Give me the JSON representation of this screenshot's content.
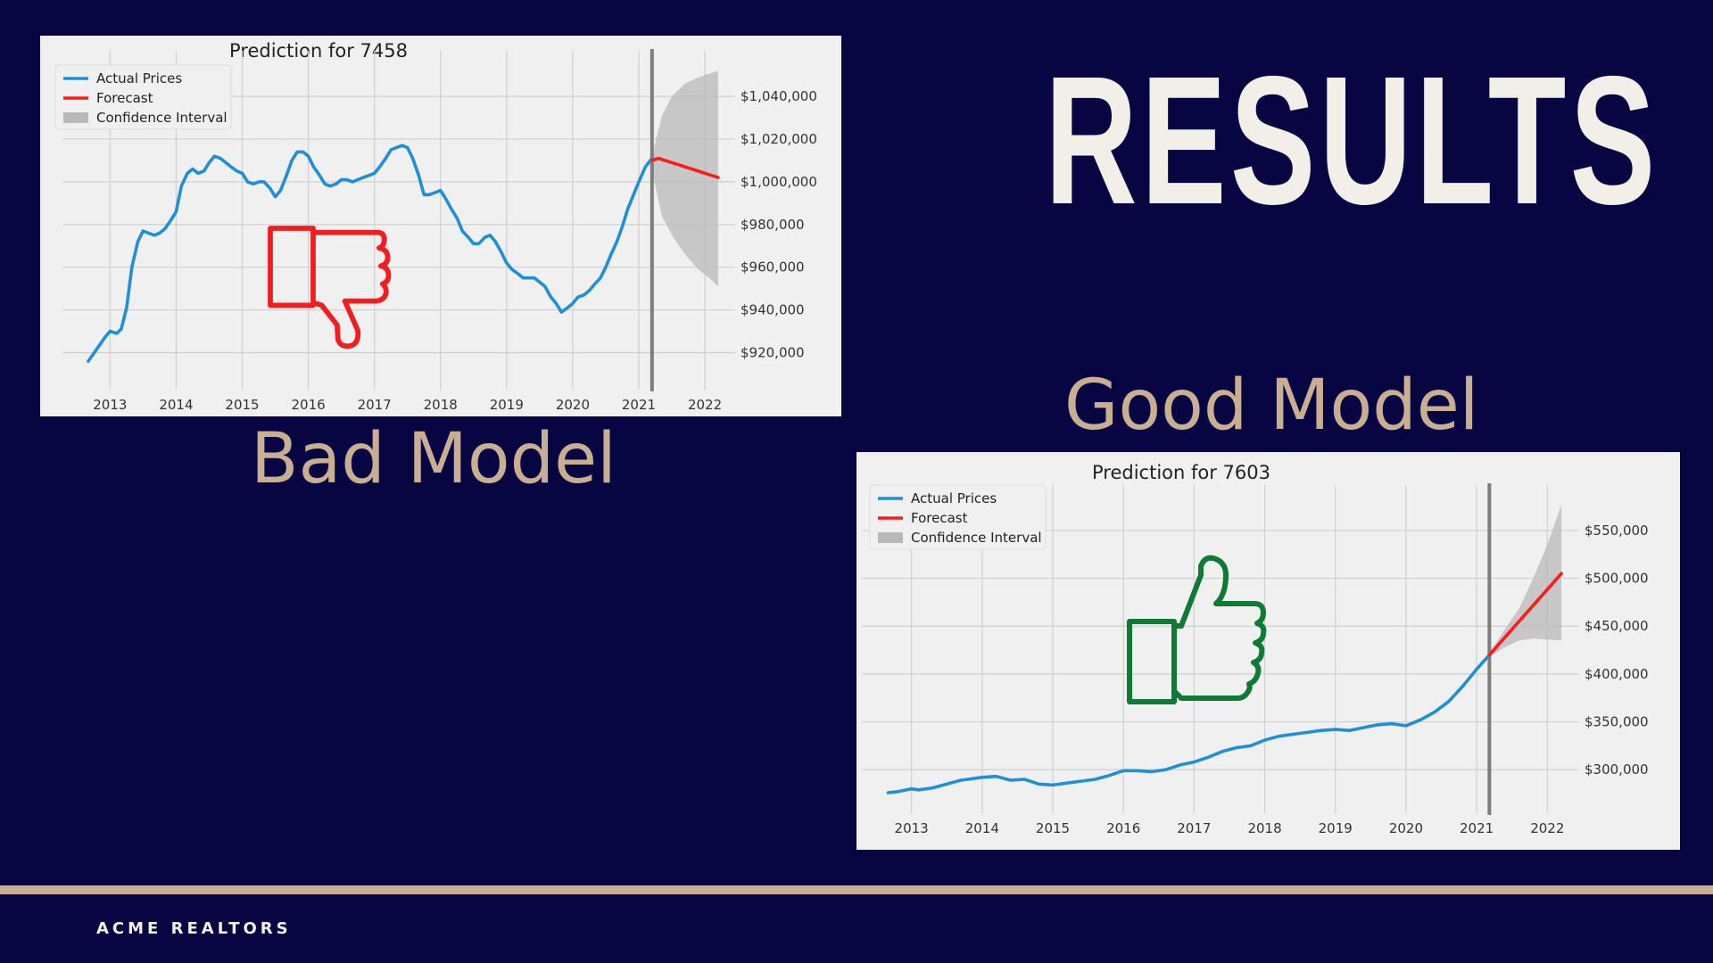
{
  "slide": {
    "title": "RESULTS",
    "bad_label": "Bad Model",
    "good_label": "Good Model",
    "footer_brand": "ACME REALTORS"
  },
  "colors": {
    "background": "#070643",
    "accent": "#c9ae92",
    "title_text": "#f1efe8",
    "actual_line": "#1f8fd6",
    "forecast_line": "#ff1a1a",
    "confidence_fill": "#b9b9b9",
    "thumbs_down": "#f01e1e",
    "thumbs_up": "#0e7a34"
  },
  "icons": [
    "thumbs-down-icon",
    "thumbs-up-icon"
  ],
  "chart_data": [
    {
      "type": "line",
      "title": "Prediction for 7458",
      "xlabel": "",
      "ylabel": "",
      "y_axis_side": "right",
      "grid": true,
      "legend_position": "top-left",
      "legend": [
        "Actual Prices",
        "Forecast",
        "Confidence Interval"
      ],
      "x_ticks": [
        "2013",
        "2014",
        "2015",
        "2016",
        "2017",
        "2018",
        "2019",
        "2020",
        "2021",
        "2022"
      ],
      "y_ticks": [
        920000,
        940000,
        960000,
        980000,
        1000000,
        1020000,
        1040000
      ],
      "y_tick_labels": [
        "$920,000",
        "$940,000",
        "$960,000",
        "$980,000",
        "$1,000,000",
        "$1,020,000",
        "$1,040,000"
      ],
      "xlim": [
        2012.55,
        2022.35
      ],
      "ylim": [
        906000,
        1058000
      ],
      "split_x": 2021.2,
      "series": [
        {
          "name": "Actual Prices",
          "x": [
            2012.67,
            2012.92,
            2013.0,
            2013.1,
            2013.17,
            2013.25,
            2013.33,
            2013.42,
            2013.5,
            2013.58,
            2013.67,
            2013.75,
            2013.83,
            2013.92,
            2014.0,
            2014.08,
            2014.17,
            2014.25,
            2014.33,
            2014.42,
            2014.5,
            2014.58,
            2014.67,
            2014.75,
            2014.83,
            2014.92,
            2015.0,
            2015.08,
            2015.17,
            2015.25,
            2015.33,
            2015.42,
            2015.5,
            2015.58,
            2015.67,
            2015.75,
            2015.83,
            2015.92,
            2016.0,
            2016.08,
            2016.17,
            2016.25,
            2016.33,
            2016.42,
            2016.5,
            2016.58,
            2016.67,
            2016.75,
            2016.83,
            2016.92,
            2017.0,
            2017.08,
            2017.17,
            2017.25,
            2017.33,
            2017.42,
            2017.5,
            2017.58,
            2017.67,
            2017.75,
            2017.83,
            2017.92,
            2018.0,
            2018.08,
            2018.17,
            2018.25,
            2018.33,
            2018.42,
            2018.5,
            2018.58,
            2018.67,
            2018.75,
            2018.83,
            2018.92,
            2019.0,
            2019.08,
            2019.17,
            2019.25,
            2019.33,
            2019.42,
            2019.5,
            2019.58,
            2019.67,
            2019.75,
            2019.83,
            2019.92,
            2020.0,
            2020.08,
            2020.17,
            2020.25,
            2020.33,
            2020.42,
            2020.5,
            2020.58,
            2020.67,
            2020.75,
            2020.83,
            2020.92,
            2021.0,
            2021.1,
            2021.2
          ],
          "y": [
            916000,
            927000,
            930000,
            929000,
            931000,
            941000,
            960000,
            972000,
            977000,
            976000,
            975000,
            976000,
            978000,
            982000,
            986000,
            998000,
            1004000,
            1006000,
            1004000,
            1005000,
            1009000,
            1012000,
            1011000,
            1009000,
            1007000,
            1005000,
            1004000,
            1000000,
            999000,
            1000000,
            1000000,
            997000,
            993000,
            996000,
            1003000,
            1010000,
            1014000,
            1014000,
            1012000,
            1007000,
            1003000,
            999000,
            998000,
            999000,
            1001000,
            1001000,
            1000000,
            1001000,
            1002000,
            1003000,
            1004000,
            1007000,
            1011000,
            1015000,
            1016000,
            1017000,
            1016000,
            1011000,
            1003000,
            994000,
            994000,
            995000,
            996000,
            992000,
            987000,
            983000,
            977000,
            974000,
            971000,
            971000,
            974000,
            975000,
            972000,
            967000,
            962000,
            959000,
            957000,
            955000,
            955000,
            955000,
            953000,
            951000,
            946000,
            943000,
            939000,
            941000,
            943000,
            946000,
            947000,
            949000,
            952000,
            955000,
            960000,
            966000,
            972000,
            979000,
            987000,
            994000,
            1000000,
            1007000,
            1011000
          ]
        },
        {
          "name": "Forecast",
          "x": [
            2021.2,
            2021.3,
            2021.5,
            2021.8,
            2022.0,
            2022.2
          ],
          "y": [
            1010000,
            1011000,
            1009000,
            1006000,
            1004000,
            1002000
          ]
        },
        {
          "name": "Confidence Interval",
          "x": [
            2021.2,
            2021.35,
            2021.5,
            2021.7,
            2021.9,
            2022.1,
            2022.2
          ],
          "lower": [
            1005000,
            984000,
            975000,
            966000,
            959000,
            954000,
            951000
          ],
          "upper": [
            1012000,
            1031000,
            1040000,
            1046000,
            1049000,
            1051000,
            1052000
          ]
        }
      ]
    },
    {
      "type": "line",
      "title": "Prediction for 7603",
      "xlabel": "",
      "ylabel": "",
      "y_axis_side": "right",
      "grid": true,
      "legend_position": "top-left",
      "legend": [
        "Actual Prices",
        "Forecast",
        "Confidence Interval"
      ],
      "x_ticks": [
        "2013",
        "2014",
        "2015",
        "2016",
        "2017",
        "2018",
        "2019",
        "2020",
        "2021",
        "2022"
      ],
      "y_ticks": [
        300000,
        350000,
        400000,
        450000,
        500000,
        550000
      ],
      "y_tick_labels": [
        "$300,000",
        "$350,000",
        "$400,000",
        "$450,000",
        "$500,000",
        "$550,000"
      ],
      "xlim": [
        2012.55,
        2022.35
      ],
      "ylim": [
        262000,
        590000
      ],
      "split_x": 2021.18,
      "series": [
        {
          "name": "Actual Prices",
          "x": [
            2012.67,
            2012.8,
            2013.0,
            2013.1,
            2013.3,
            2013.5,
            2013.7,
            2014.0,
            2014.2,
            2014.4,
            2014.6,
            2014.8,
            2015.0,
            2015.2,
            2015.4,
            2015.6,
            2015.8,
            2016.0,
            2016.2,
            2016.4,
            2016.6,
            2016.8,
            2017.0,
            2017.2,
            2017.4,
            2017.6,
            2017.8,
            2018.0,
            2018.2,
            2018.4,
            2018.6,
            2018.8,
            2019.0,
            2019.2,
            2019.4,
            2019.6,
            2019.8,
            2020.0,
            2020.2,
            2020.4,
            2020.6,
            2020.8,
            2021.0,
            2021.18
          ],
          "y": [
            276000,
            277000,
            280000,
            279000,
            281000,
            285000,
            289000,
            292000,
            293000,
            289000,
            290000,
            285000,
            284000,
            286000,
            288000,
            290000,
            294000,
            299000,
            299000,
            298000,
            300000,
            305000,
            308000,
            313000,
            319000,
            323000,
            325000,
            331000,
            335000,
            337000,
            339000,
            341000,
            342000,
            341000,
            344000,
            347000,
            348000,
            346000,
            352000,
            360000,
            371000,
            387000,
            405000,
            420000
          ]
        },
        {
          "name": "Forecast",
          "x": [
            2021.18,
            2022.2
          ],
          "y": [
            420000,
            505000
          ]
        },
        {
          "name": "Confidence Interval",
          "x": [
            2021.18,
            2021.4,
            2021.6,
            2021.8,
            2022.0,
            2022.2
          ],
          "lower": [
            418000,
            428000,
            435000,
            437000,
            436000,
            435000
          ],
          "upper": [
            422000,
            447000,
            468000,
            500000,
            535000,
            577000
          ]
        }
      ]
    }
  ]
}
